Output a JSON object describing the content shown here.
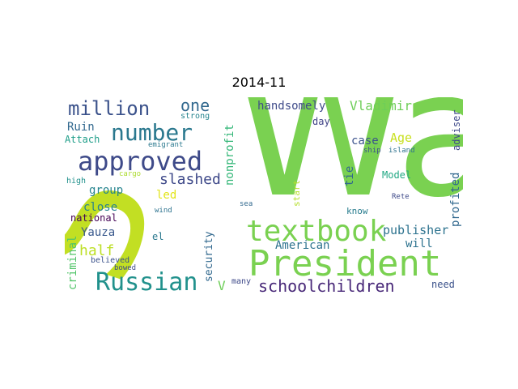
{
  "title": "2014-11",
  "words": [
    {
      "text": "Wa",
      "color": "#7ad151"
    },
    {
      "text": "S",
      "color": "#c2df23"
    },
    {
      "text": "President",
      "color": "#7ad151"
    },
    {
      "text": "textbook",
      "color": "#7ad151"
    },
    {
      "text": "approved",
      "color": "#3e4a89"
    },
    {
      "text": "Russian",
      "color": "#21918c"
    },
    {
      "text": "number",
      "color": "#2a788e"
    },
    {
      "text": "million",
      "color": "#3b528b"
    },
    {
      "text": "schoolchildren",
      "color": "#482878"
    },
    {
      "text": "slashed",
      "color": "#3e4989"
    },
    {
      "text": "one",
      "color": "#31688e"
    },
    {
      "text": "half",
      "color": "#bddf26"
    },
    {
      "text": "Vladimir",
      "color": "#6ece58"
    },
    {
      "text": "handsomely",
      "color": "#3e4a89"
    },
    {
      "text": "publisher",
      "color": "#2c728e"
    },
    {
      "text": "American",
      "color": "#2c728e"
    },
    {
      "text": "nonprofit",
      "color": "#35b779"
    },
    {
      "text": "profited",
      "color": "#31688e"
    },
    {
      "text": "adviser",
      "color": "#3e4989"
    },
    {
      "text": "criminal",
      "color": "#52c569"
    },
    {
      "text": "security",
      "color": "#31688e"
    },
    {
      "text": "group",
      "color": "#25848e"
    },
    {
      "text": "close",
      "color": "#26828e"
    },
    {
      "text": "Yauza",
      "color": "#38588c"
    },
    {
      "text": "Ruin",
      "color": "#31688e"
    },
    {
      "text": "Attach",
      "color": "#1f9e89"
    },
    {
      "text": "Age",
      "color": "#c8e020"
    },
    {
      "text": "case",
      "color": "#3b528b"
    },
    {
      "text": "tie",
      "color": "#31688e"
    },
    {
      "text": "led",
      "color": "#e2e418"
    },
    {
      "text": "national",
      "color": "#440154"
    },
    {
      "text": "el",
      "color": "#2a788e"
    },
    {
      "text": "will",
      "color": "#2c728e"
    },
    {
      "text": "Model",
      "color": "#22a884"
    },
    {
      "text": "V",
      "color": "#6ece58"
    },
    {
      "text": "many",
      "color": "#3e4989"
    },
    {
      "text": "need",
      "color": "#3b528b"
    },
    {
      "text": "day",
      "color": "#414487"
    },
    {
      "text": "know",
      "color": "#287c8e"
    },
    {
      "text": "start",
      "color": "#b5de2b"
    },
    {
      "text": "strong",
      "color": "#25848e"
    },
    {
      "text": "emigrant",
      "color": "#2a788e"
    },
    {
      "text": "high",
      "color": "#21918c"
    },
    {
      "text": "cargo",
      "color": "#addc30"
    },
    {
      "text": "wind",
      "color": "#2c728e"
    },
    {
      "text": "believed",
      "color": "#3b528b"
    },
    {
      "text": "bowed",
      "color": "#3e4a89"
    },
    {
      "text": "sea",
      "color": "#31688e"
    },
    {
      "text": "ship",
      "color": "#3b528b"
    },
    {
      "text": "island",
      "color": "#2c728e"
    },
    {
      "text": "Rete",
      "color": "#3e4989"
    }
  ]
}
